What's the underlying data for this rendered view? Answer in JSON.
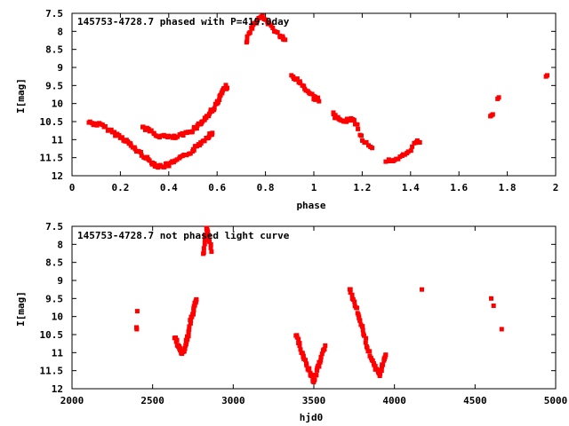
{
  "chart_data": [
    {
      "type": "scatter",
      "title": "145753-4728.7 phased with P=419.0day",
      "xlabel": "phase",
      "ylabel": "I[mag]",
      "xlim": [
        0,
        2
      ],
      "ylim": [
        12,
        7.5
      ],
      "y_inverted": true,
      "grid": false,
      "marker_color": "#ff0000",
      "xticks": [
        0,
        0.2,
        0.4,
        0.6,
        0.8,
        1,
        1.2,
        1.4,
        1.6,
        1.8,
        2
      ],
      "xtick_labels": [
        "0",
        "0.2",
        "0.4",
        "0.6",
        "0.8",
        "1",
        "1.2",
        "1.4",
        "1.6",
        "1.8",
        "2"
      ],
      "yticks": [
        7.5,
        8,
        8.5,
        9,
        9.5,
        10,
        10.5,
        11,
        11.5,
        12
      ],
      "ytick_labels": [
        "7.5",
        "8",
        "8.5",
        "9",
        "9.5",
        "10",
        "10.5",
        "11",
        "11.5",
        "12"
      ],
      "segments": [
        {
          "points": [
            [
              0.07,
              10.52
            ],
            [
              0.12,
              10.6
            ],
            [
              0.17,
              10.8
            ],
            [
              0.22,
              11.0
            ],
            [
              0.25,
              11.2
            ],
            [
              0.29,
              11.42
            ],
            [
              0.33,
              11.63
            ],
            [
              0.36,
              11.75
            ],
            [
              0.4,
              11.7
            ],
            [
              0.45,
              11.52
            ],
            [
              0.5,
              11.3
            ],
            [
              0.53,
              11.1
            ],
            [
              0.56,
              10.92
            ],
            [
              0.58,
              10.82
            ]
          ],
          "n": 95
        },
        {
          "points": [
            [
              0.29,
              10.63
            ],
            [
              0.35,
              10.88
            ],
            [
              0.42,
              10.95
            ],
            [
              0.48,
              10.82
            ],
            [
              0.52,
              10.62
            ],
            [
              0.56,
              10.35
            ],
            [
              0.6,
              10.0
            ],
            [
              0.62,
              9.7
            ],
            [
              0.64,
              9.52
            ]
          ],
          "n": 75
        },
        {
          "points": [
            [
              0.72,
              8.28
            ],
            [
              0.74,
              7.95
            ],
            [
              0.76,
              7.75
            ],
            [
              0.79,
              7.58
            ],
            [
              0.82,
              7.85
            ],
            [
              0.86,
              8.12
            ],
            [
              0.88,
              8.25
            ]
          ],
          "n": 35
        },
        {
          "points": [
            [
              0.91,
              9.22
            ],
            [
              0.95,
              9.48
            ],
            [
              1.0,
              9.82
            ],
            [
              1.02,
              9.9
            ]
          ],
          "n": 25
        },
        {
          "points": [
            [
              1.08,
              10.3
            ],
            [
              1.1,
              10.42
            ],
            [
              1.13,
              10.5
            ],
            [
              1.15,
              10.42
            ],
            [
              1.17,
              10.5
            ],
            [
              1.2,
              11.0
            ],
            [
              1.24,
              11.22
            ]
          ],
          "n": 32
        },
        {
          "points": [
            [
              1.3,
              11.58
            ],
            [
              1.33,
              11.62
            ],
            [
              1.36,
              11.5
            ],
            [
              1.39,
              11.35
            ],
            [
              1.42,
              11.08
            ],
            [
              1.44,
              11.05
            ]
          ],
          "n": 22
        },
        {
          "points": [
            [
              1.73,
              10.35
            ],
            [
              1.74,
              10.3
            ]
          ],
          "n": 3
        },
        {
          "points": [
            [
              1.76,
              9.87
            ],
            [
              1.765,
              9.83
            ]
          ],
          "n": 2
        },
        {
          "points": [
            [
              1.96,
              9.25
            ],
            [
              1.965,
              9.22
            ]
          ],
          "n": 2
        }
      ]
    },
    {
      "type": "scatter",
      "title": "145753-4728.7 not phased light curve",
      "xlabel": "hjd0",
      "ylabel": "I[mag]",
      "xlim": [
        2000,
        5000
      ],
      "ylim": [
        12,
        7.5
      ],
      "y_inverted": true,
      "grid": false,
      "marker_color": "#ff0000",
      "xticks": [
        2000,
        2500,
        3000,
        3500,
        4000,
        4500,
        5000
      ],
      "xtick_labels": [
        "2000",
        "2500",
        "3000",
        "3500",
        "4000",
        "4500",
        "5000"
      ],
      "yticks": [
        7.5,
        8,
        8.5,
        9,
        9.5,
        10,
        10.5,
        11,
        11.5,
        12
      ],
      "ytick_labels": [
        "7.5",
        "8",
        "8.5",
        "9",
        "9.5",
        "10",
        "10.5",
        "11",
        "11.5",
        "12"
      ],
      "segments": [
        {
          "points": [
            [
              2400,
              10.3
            ],
            [
              2402,
              10.35
            ]
          ],
          "n": 3
        },
        {
          "points": [
            [
              2405,
              9.85
            ]
          ],
          "n": 1
        },
        {
          "points": [
            [
              2640,
              10.6
            ],
            [
              2660,
              10.85
            ],
            [
              2680,
              11.0
            ],
            [
              2700,
              10.9
            ],
            [
              2720,
              10.5
            ],
            [
              2740,
              10.05
            ],
            [
              2760,
              9.7
            ],
            [
              2770,
              9.5
            ]
          ],
          "n": 55
        },
        {
          "points": [
            [
              2815,
              8.3
            ],
            [
              2822,
              8.0
            ],
            [
              2830,
              7.6
            ],
            [
              2840,
              7.55
            ],
            [
              2855,
              7.9
            ],
            [
              2868,
              8.25
            ]
          ],
          "n": 18
        },
        {
          "points": [
            [
              3390,
              10.5
            ],
            [
              3420,
              10.9
            ],
            [
              3450,
              11.3
            ],
            [
              3480,
              11.6
            ],
            [
              3500,
              11.8
            ],
            [
              3520,
              11.5
            ],
            [
              3540,
              11.2
            ],
            [
              3570,
              10.8
            ]
          ],
          "n": 50
        },
        {
          "points": [
            [
              3720,
              9.2
            ],
            [
              3750,
              9.6
            ],
            [
              3780,
              10.0
            ],
            [
              3800,
              10.3
            ],
            [
              3830,
              10.8
            ],
            [
              3860,
              11.2
            ],
            [
              3890,
              11.5
            ],
            [
              3910,
              11.6
            ],
            [
              3930,
              11.3
            ],
            [
              3945,
              11.05
            ]
          ],
          "n": 55
        },
        {
          "points": [
            [
              4170,
              9.25
            ]
          ],
          "n": 1
        },
        {
          "points": [
            [
              4600,
              9.5
            ]
          ],
          "n": 1
        },
        {
          "points": [
            [
              4615,
              9.7
            ]
          ],
          "n": 1
        },
        {
          "points": [
            [
              4665,
              10.35
            ]
          ],
          "n": 1
        }
      ]
    }
  ]
}
